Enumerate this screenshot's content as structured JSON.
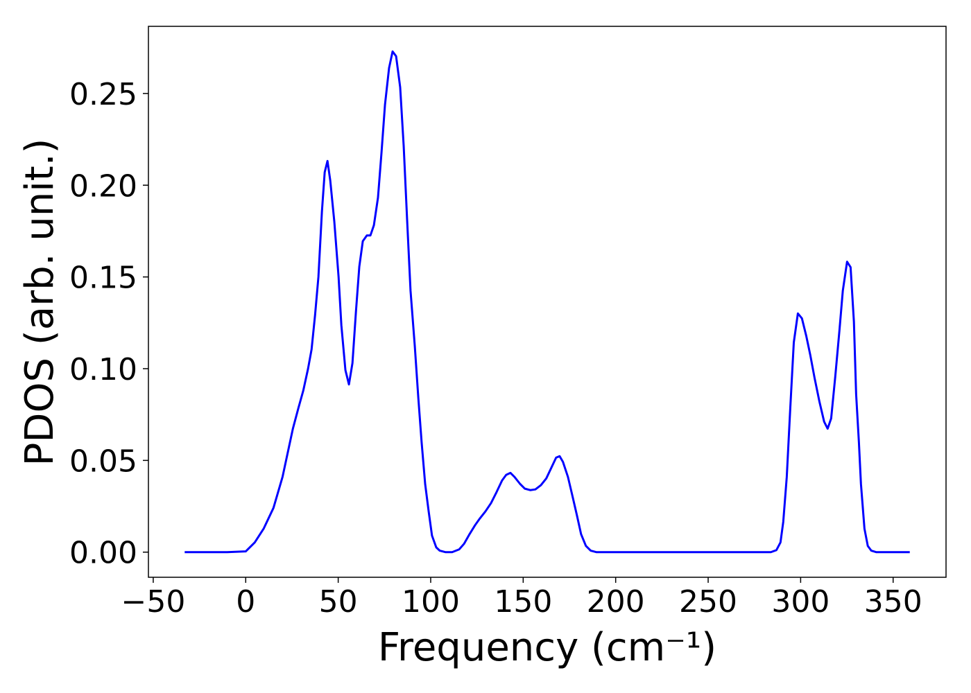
{
  "chart_data": {
    "type": "line",
    "xlabel": "Frequency (cm⁻¹)",
    "ylabel": "PDOS (arb. unit.)",
    "color": "#0000ff",
    "x": [
      -33,
      -20,
      -10,
      0,
      4.9,
      9.7,
      15.0,
      19.9,
      25.5,
      28.5,
      31.1,
      33.7,
      35.6,
      37.5,
      39.3,
      41.2,
      42.7,
      44.2,
      45.7,
      47.9,
      50.2,
      51.7,
      53.9,
      55.8,
      57.7,
      59.6,
      61.4,
      63.3,
      65.5,
      67.4,
      69.3,
      71.5,
      73.4,
      75.3,
      77.5,
      79.4,
      81.3,
      83.5,
      85.4,
      87.3,
      89.1,
      91.4,
      93.3,
      95.1,
      97.0,
      98.9,
      100.7,
      103.0,
      104.9,
      107.9,
      111.6,
      115.4,
      118.0,
      121.0,
      124.0,
      126.6,
      129.6,
      132.6,
      135.6,
      138.6,
      140.8,
      143.1,
      145.3,
      148.3,
      150.9,
      153.9,
      156.6,
      159.6,
      162.5,
      165.5,
      167.8,
      169.7,
      171.5,
      174.2,
      176.4,
      179.0,
      181.3,
      183.9,
      186.5,
      189.5,
      250,
      283.9,
      286.9,
      289.1,
      290.6,
      292.5,
      294.4,
      296.3,
      298.5,
      300.7,
      303.0,
      305.2,
      307.5,
      310.1,
      312.7,
      314.6,
      316.5,
      318.7,
      321.0,
      322.8,
      325.1,
      327.0,
      328.8,
      330.0,
      331.5,
      332.6,
      334.5,
      336.3,
      338.2,
      340.8,
      359
    ],
    "values": [
      0,
      0,
      0,
      0.0004,
      0.0053,
      0.0128,
      0.0241,
      0.041,
      0.0673,
      0.0786,
      0.088,
      0.1,
      0.1105,
      0.1293,
      0.15,
      0.1857,
      0.2071,
      0.2132,
      0.2026,
      0.1801,
      0.15,
      0.1237,
      0.0992,
      0.0914,
      0.103,
      0.1312,
      0.1556,
      0.1695,
      0.1726,
      0.1726,
      0.1782,
      0.1932,
      0.2177,
      0.244,
      0.2639,
      0.2729,
      0.2703,
      0.2534,
      0.2214,
      0.1801,
      0.1425,
      0.1124,
      0.0842,
      0.0598,
      0.0372,
      0.0222,
      0.009,
      0.0026,
      0.0008,
      0,
      0,
      0.0015,
      0.0045,
      0.0098,
      0.0147,
      0.0184,
      0.0222,
      0.0267,
      0.0327,
      0.0391,
      0.0421,
      0.0432,
      0.041,
      0.0372,
      0.0346,
      0.0338,
      0.0342,
      0.0365,
      0.0402,
      0.0466,
      0.0515,
      0.0523,
      0.0492,
      0.041,
      0.0316,
      0.0203,
      0.0098,
      0.0034,
      0.0008,
      0,
      0,
      0,
      0.0011,
      0.0053,
      0.0165,
      0.041,
      0.0786,
      0.1143,
      0.1301,
      0.1274,
      0.118,
      0.1075,
      0.0951,
      0.0823,
      0.0711,
      0.0673,
      0.0729,
      0.0955,
      0.1211,
      0.1425,
      0.1583,
      0.1553,
      0.1256,
      0.0861,
      0.0598,
      0.0372,
      0.0128,
      0.0034,
      0.0008,
      0,
      0
    ],
    "xlim": [
      -52.6,
      378.6
    ],
    "ylim": [
      -0.0137,
      0.2866
    ],
    "xticks": [
      {
        "value": -50,
        "label": "−50"
      },
      0,
      50,
      100,
      150,
      200,
      250,
      300,
      350
    ],
    "yticks": [
      {
        "value": 0,
        "label": "0.00"
      },
      0.05,
      {
        "value": 0.1,
        "label": "0.10"
      },
      0.15,
      {
        "value": 0.2,
        "label": "0.20"
      },
      0.25
    ],
    "grid": false
  }
}
